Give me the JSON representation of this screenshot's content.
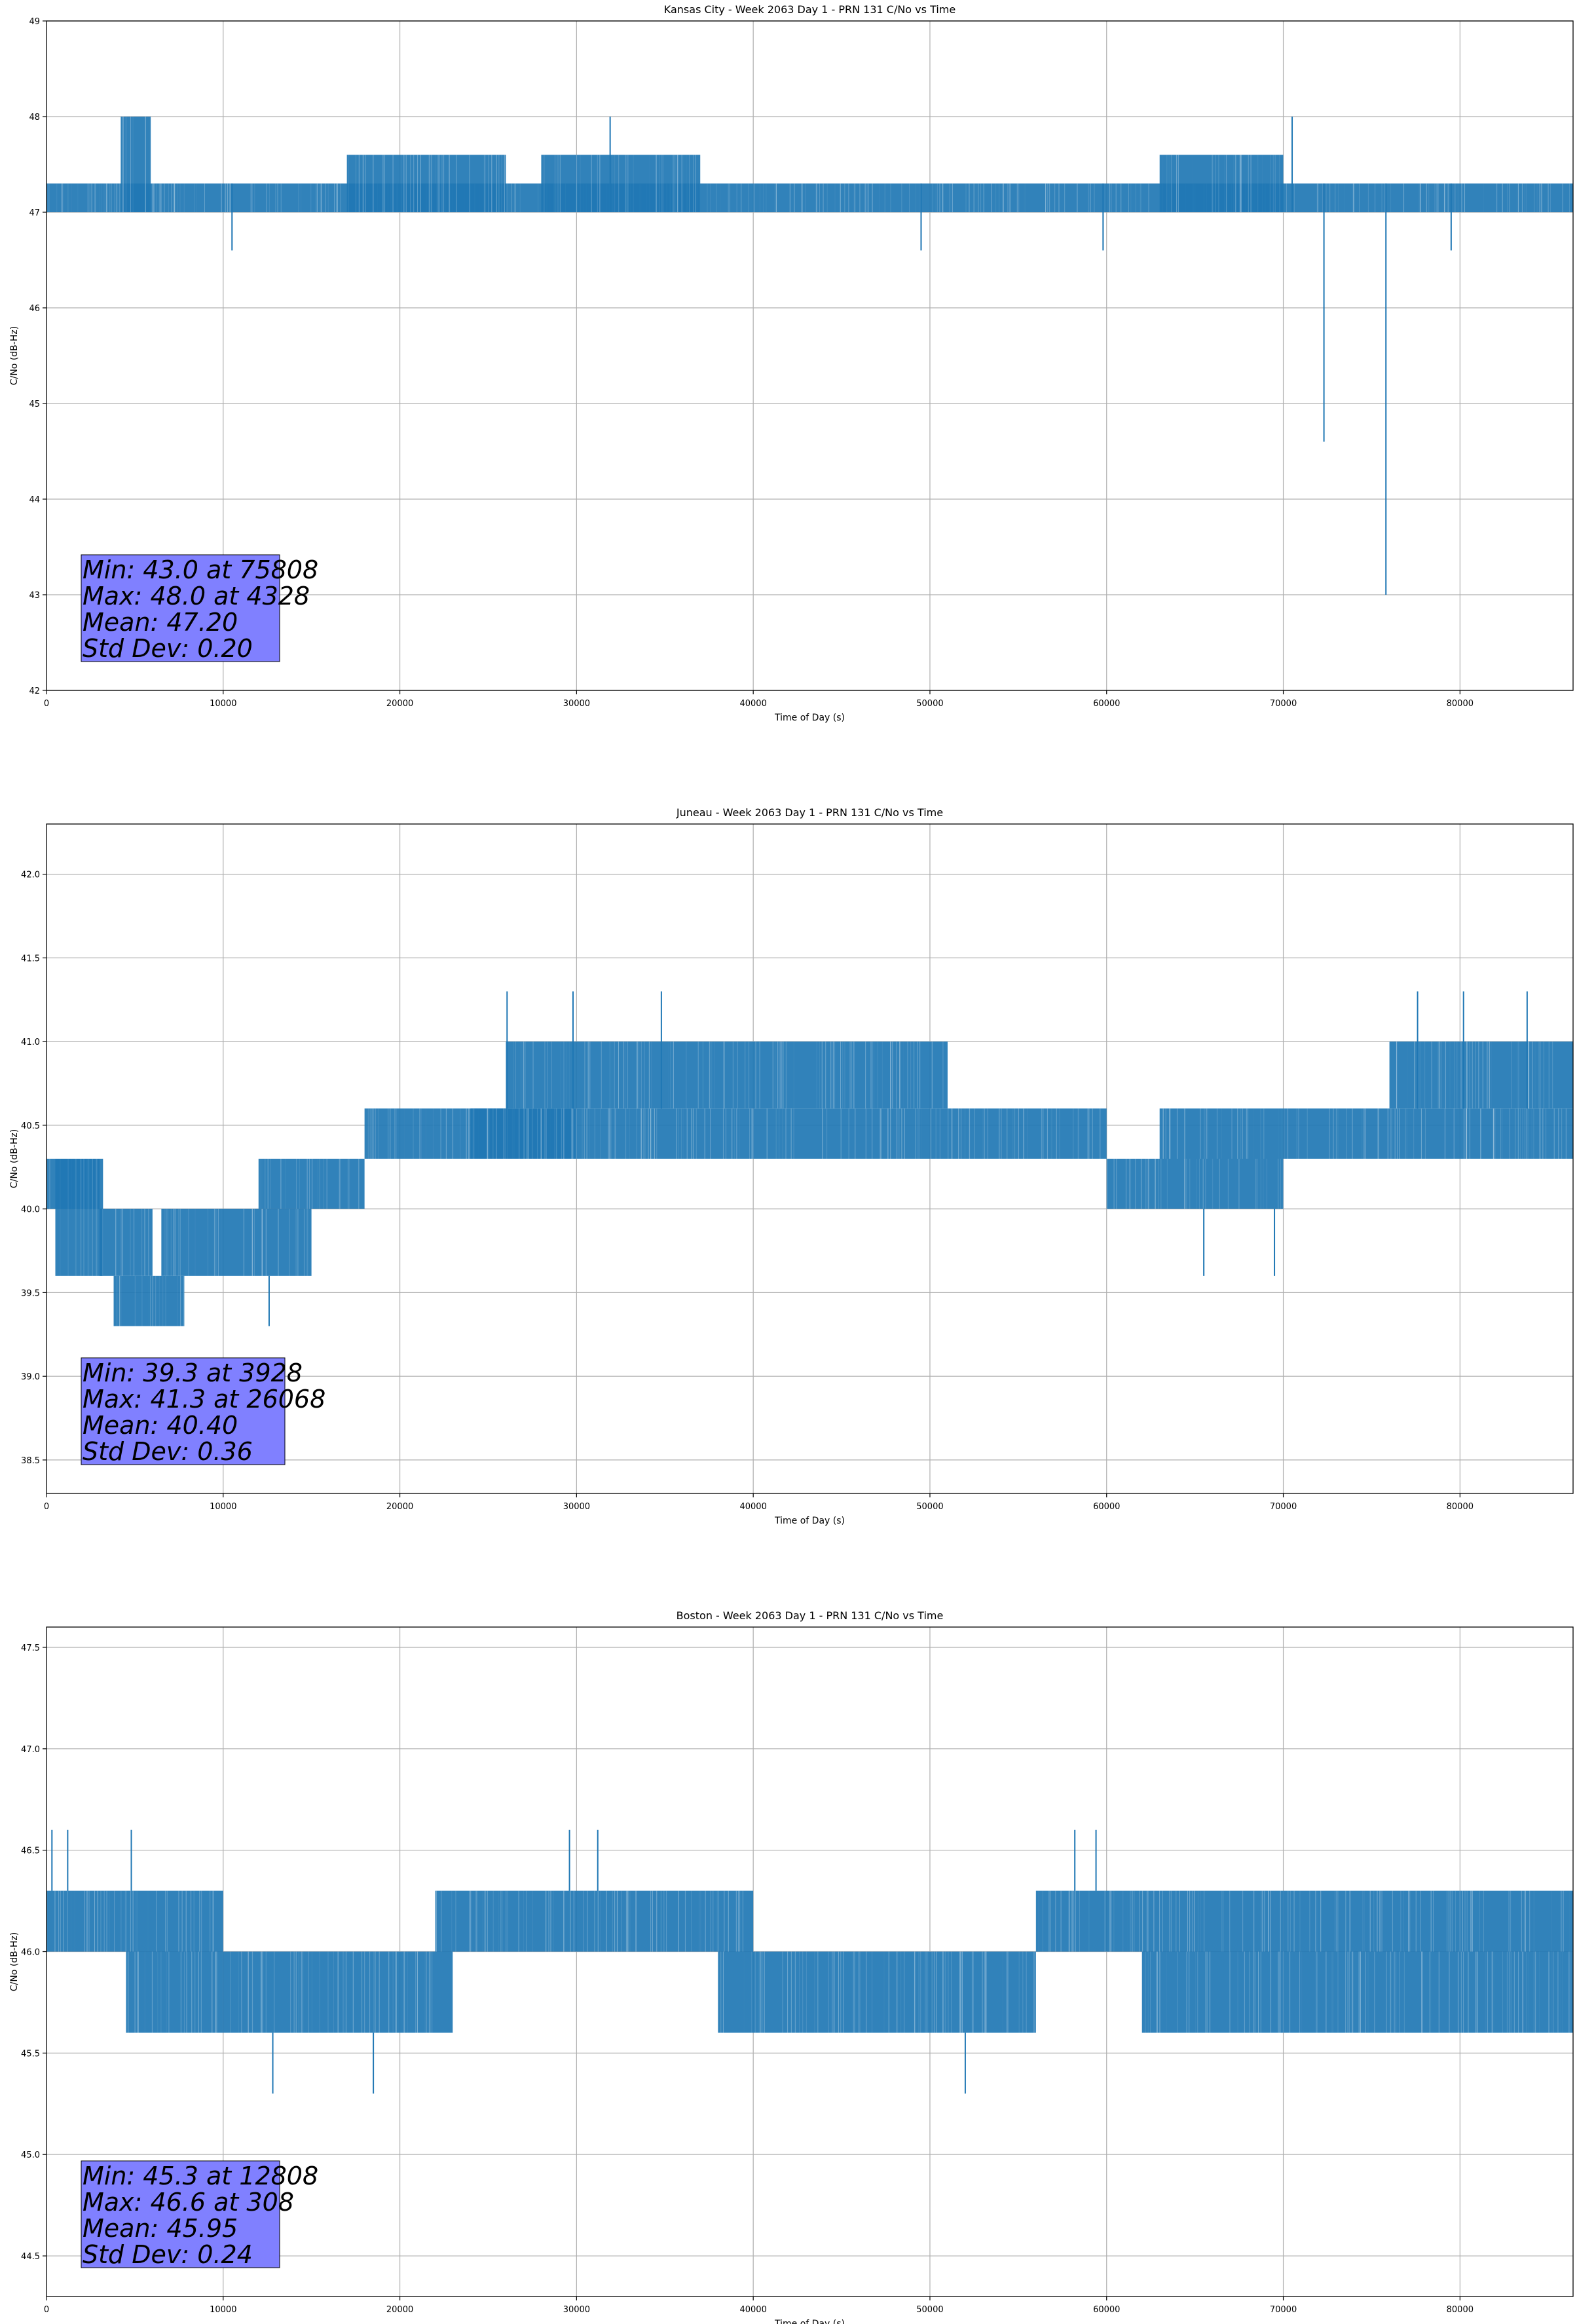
{
  "colors": {
    "series": "#1f77b4",
    "stats_box": "#8080ff",
    "grid": "#b0b0b0"
  },
  "chart_data": [
    {
      "type": "line",
      "title": "Kansas City - Week 2063 Day 1 - PRN 131 C/No vs Time",
      "xlabel": "Time of Day (s)",
      "ylabel": "C/No (dB-Hz)",
      "xlim": [
        0,
        86400
      ],
      "ylim": [
        42,
        49
      ],
      "xticks": [
        0,
        10000,
        20000,
        30000,
        40000,
        50000,
        60000,
        70000,
        80000
      ],
      "yticks": [
        42,
        43,
        44,
        45,
        46,
        47,
        48,
        49
      ],
      "ytick_labels": [
        "42",
        "43",
        "44",
        "45",
        "46",
        "47",
        "48",
        "49"
      ],
      "grid": true,
      "series": [
        {
          "name": "C/No",
          "base_band": [
            47.0,
            47.3
          ],
          "segments": [
            {
              "x": [
                0,
                86400
              ],
              "low": 47.0,
              "high": 47.3
            },
            {
              "x": [
                4200,
                5900
              ],
              "low": 47.0,
              "high": 48.0
            },
            {
              "x": [
                17000,
                22000
              ],
              "low": 47.0,
              "high": 47.6
            },
            {
              "x": [
                22000,
                26000
              ],
              "low": 47.0,
              "high": 47.6
            },
            {
              "x": [
                28000,
                37000
              ],
              "low": 47.0,
              "high": 47.6
            },
            {
              "x": [
                63000,
                70000
              ],
              "low": 47.0,
              "high": 47.6
            }
          ],
          "spikes": [
            {
              "x": 31900,
              "low": 47.0,
              "high": 48.0
            },
            {
              "x": 70500,
              "low": 47.0,
              "high": 48.0
            },
            {
              "x": 72300,
              "low": 44.6,
              "high": 47.3
            },
            {
              "x": 75808,
              "low": 43.0,
              "high": 47.3
            },
            {
              "x": 10500,
              "low": 46.6,
              "high": 47.3
            },
            {
              "x": 49500,
              "low": 46.6,
              "high": 47.3
            },
            {
              "x": 59800,
              "low": 46.6,
              "high": 47.3
            },
            {
              "x": 79500,
              "low": 46.6,
              "high": 47.3
            }
          ]
        }
      ],
      "stats": [
        "Min: 43.0 at 75808",
        "Max: 48.0 at 4328",
        "Mean: 47.20",
        "Std Dev: 0.20"
      ]
    },
    {
      "type": "line",
      "title": "Juneau - Week 2063 Day 1 - PRN 131 C/No vs Time",
      "xlabel": "Time of Day (s)",
      "ylabel": "C/No (dB-Hz)",
      "xlim": [
        0,
        86400
      ],
      "ylim": [
        38.3,
        42.3
      ],
      "xticks": [
        0,
        10000,
        20000,
        30000,
        40000,
        50000,
        60000,
        70000,
        80000
      ],
      "yticks": [
        38.5,
        39.0,
        39.5,
        40.0,
        40.5,
        41.0,
        41.5,
        42.0
      ],
      "ytick_labels": [
        "38.5",
        "39.0",
        "39.5",
        "40.0",
        "40.5",
        "41.0",
        "41.5",
        "42.0"
      ],
      "grid": true,
      "series": [
        {
          "name": "C/No",
          "segments": [
            {
              "x": [
                0,
                3000
              ],
              "low": 40.0,
              "high": 40.3
            },
            {
              "x": [
                500,
                3200
              ],
              "low": 39.6,
              "high": 40.3
            },
            {
              "x": [
                3000,
                6000
              ],
              "low": 39.6,
              "high": 40.0
            },
            {
              "x": [
                3800,
                7800
              ],
              "low": 39.3,
              "high": 39.6
            },
            {
              "x": [
                6500,
                15000
              ],
              "low": 39.6,
              "high": 40.0
            },
            {
              "x": [
                12000,
                18000
              ],
              "low": 40.0,
              "high": 40.3
            },
            {
              "x": [
                18000,
                30000
              ],
              "low": 40.3,
              "high": 40.6
            },
            {
              "x": [
                24000,
                52000
              ],
              "low": 40.3,
              "high": 40.6
            },
            {
              "x": [
                26000,
                51000
              ],
              "low": 40.6,
              "high": 41.0
            },
            {
              "x": [
                52000,
                60000
              ],
              "low": 40.3,
              "high": 40.6
            },
            {
              "x": [
                60000,
                70000
              ],
              "low": 40.0,
              "high": 40.3
            },
            {
              "x": [
                63000,
                70000
              ],
              "low": 40.3,
              "high": 40.6
            },
            {
              "x": [
                70000,
                86400
              ],
              "low": 40.3,
              "high": 40.6
            },
            {
              "x": [
                76000,
                86400
              ],
              "low": 40.6,
              "high": 41.0
            }
          ],
          "spikes": [
            {
              "x": 26068,
              "low": 40.6,
              "high": 41.3
            },
            {
              "x": 29800,
              "low": 40.6,
              "high": 41.3
            },
            {
              "x": 34800,
              "low": 40.6,
              "high": 41.3
            },
            {
              "x": 77600,
              "low": 40.6,
              "high": 41.3
            },
            {
              "x": 80200,
              "low": 40.6,
              "high": 41.3
            },
            {
              "x": 83800,
              "low": 40.6,
              "high": 41.3
            },
            {
              "x": 12600,
              "low": 39.3,
              "high": 39.6
            },
            {
              "x": 65500,
              "low": 39.6,
              "high": 40.0
            },
            {
              "x": 69500,
              "low": 39.6,
              "high": 40.0
            }
          ]
        }
      ],
      "stats": [
        "Min: 39.3 at 3928",
        "Max: 41.3 at 26068",
        "Mean: 40.40",
        "Std Dev: 0.36"
      ]
    },
    {
      "type": "line",
      "title": "Boston - Week 2063 Day 1 - PRN 131 C/No vs Time",
      "xlabel": "Time of Day (s)",
      "ylabel": "C/No (dB-Hz)",
      "xlim": [
        0,
        86400
      ],
      "ylim": [
        44.3,
        47.6
      ],
      "xticks": [
        0,
        10000,
        20000,
        30000,
        40000,
        50000,
        60000,
        70000,
        80000
      ],
      "yticks": [
        44.5,
        45.0,
        45.5,
        46.0,
        46.5,
        47.0,
        47.5
      ],
      "ytick_labels": [
        "44.5",
        "45.0",
        "45.5",
        "46.0",
        "46.5",
        "47.0",
        "47.5"
      ],
      "grid": true,
      "series": [
        {
          "name": "C/No",
          "segments": [
            {
              "x": [
                0,
                10000
              ],
              "low": 46.0,
              "high": 46.3
            },
            {
              "x": [
                4500,
                10000
              ],
              "low": 45.6,
              "high": 46.0
            },
            {
              "x": [
                10000,
                23000
              ],
              "low": 45.6,
              "high": 46.0
            },
            {
              "x": [
                22000,
                27000
              ],
              "low": 46.0,
              "high": 46.3
            },
            {
              "x": [
                27000,
                36500
              ],
              "low": 46.0,
              "high": 46.3
            },
            {
              "x": [
                36500,
                40000
              ],
              "low": 46.0,
              "high": 46.3
            },
            {
              "x": [
                38000,
                56000
              ],
              "low": 45.6,
              "high": 46.0
            },
            {
              "x": [
                56000,
                86400
              ],
              "low": 46.0,
              "high": 46.3
            },
            {
              "x": [
                62000,
                86400
              ],
              "low": 45.6,
              "high": 46.0
            }
          ],
          "spikes": [
            {
              "x": 308,
              "low": 46.3,
              "high": 46.6
            },
            {
              "x": 1200,
              "low": 46.3,
              "high": 46.6
            },
            {
              "x": 4800,
              "low": 46.3,
              "high": 46.6
            },
            {
              "x": 29600,
              "low": 46.3,
              "high": 46.6
            },
            {
              "x": 31200,
              "low": 46.3,
              "high": 46.6
            },
            {
              "x": 58200,
              "low": 46.3,
              "high": 46.6
            },
            {
              "x": 59400,
              "low": 46.3,
              "high": 46.6
            },
            {
              "x": 12808,
              "low": 45.3,
              "high": 45.6
            },
            {
              "x": 18500,
              "low": 45.3,
              "high": 45.6
            },
            {
              "x": 52000,
              "low": 45.3,
              "high": 45.6
            }
          ]
        }
      ],
      "stats": [
        "Min: 45.3 at 12808",
        "Max: 46.6 at 308",
        "Mean: 45.95",
        "Std Dev: 0.24"
      ]
    }
  ]
}
